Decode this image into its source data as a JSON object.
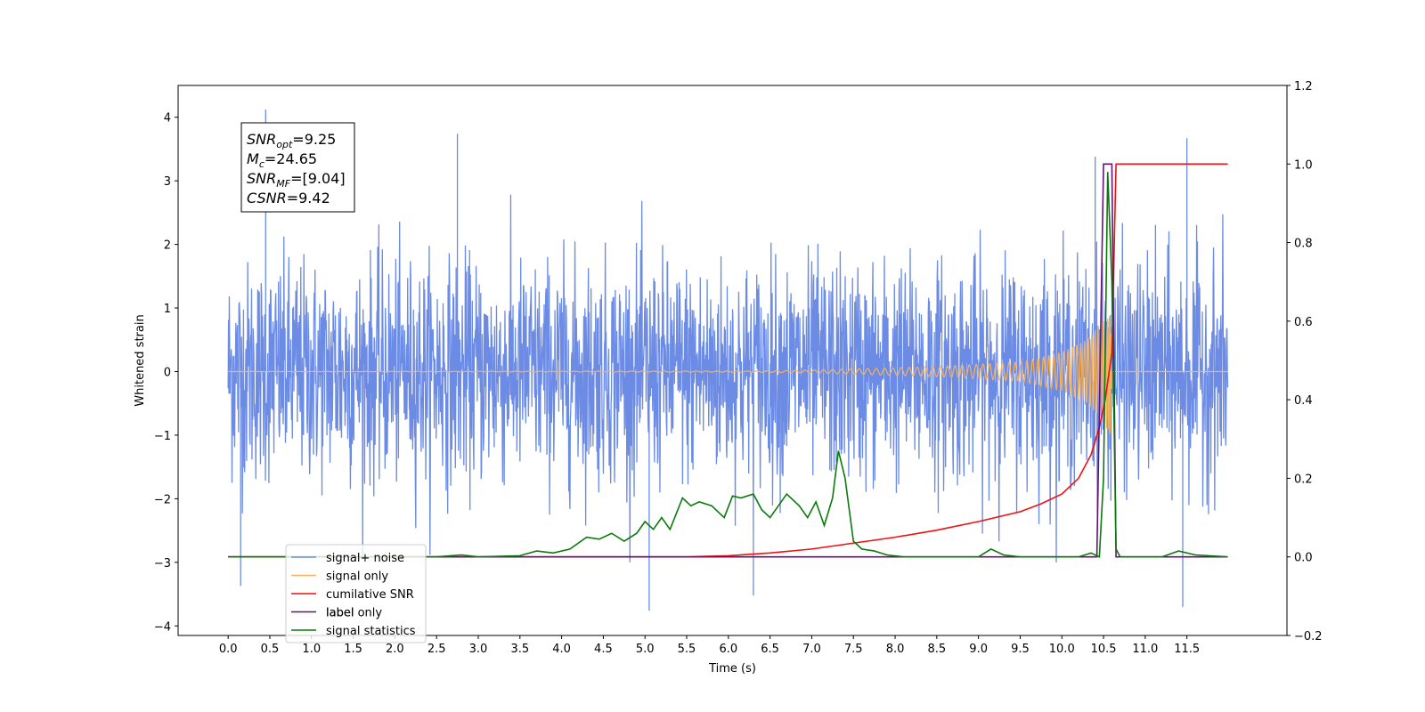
{
  "chart_data": {
    "type": "line",
    "xlabel": "Time (s)",
    "ylabel": "Whitened strain",
    "xlim": [
      -0.6,
      12.7
    ],
    "ylim": [
      -4.15,
      4.5
    ],
    "y2lim": [
      -0.2,
      1.2
    ],
    "x_ticks": [
      0.0,
      0.5,
      1.0,
      1.5,
      2.0,
      2.5,
      3.0,
      3.5,
      4.0,
      4.5,
      5.0,
      5.5,
      6.0,
      6.5,
      7.0,
      7.5,
      8.0,
      8.5,
      9.0,
      9.5,
      10.0,
      10.5,
      11.0,
      11.5
    ],
    "x_tick_labels": [
      "0.0",
      "0.5",
      "1.0",
      "1.5",
      "2.0",
      "2.5",
      "3.0",
      "3.5",
      "4.0",
      "4.5",
      "5.0",
      "5.5",
      "6.0",
      "6.5",
      "7.0",
      "7.5",
      "8.0",
      "8.5",
      "9.0",
      "9.5",
      "10.0",
      "10.5",
      "11.0",
      "11.5"
    ],
    "y_ticks": [
      -4,
      -3,
      -2,
      -1,
      0,
      1,
      2,
      3,
      4
    ],
    "y_tick_labels": [
      "−4",
      "−3",
      "−2",
      "−1",
      "0",
      "1",
      "2",
      "3",
      "4"
    ],
    "y2_ticks": [
      -0.2,
      0.0,
      0.2,
      0.4,
      0.6,
      0.8,
      1.0,
      1.2
    ],
    "y2_tick_labels": [
      "−0.2",
      "0.0",
      "0.2",
      "0.4",
      "0.6",
      "0.8",
      "1.0",
      "1.2"
    ],
    "grid": false,
    "legend_position": "lower-left",
    "series": [
      {
        "name": "signal+ noise",
        "axis": "left",
        "color": "#6b8be5",
        "description": "dense whitened noise, roughly within ±2.5 with peaks near ±4",
        "x_range": [
          0.0,
          11.99
        ],
        "amplitude_envelope_std": 0.85,
        "outlier_peaks": [
          [
            0.45,
            4.12
          ],
          [
            2.75,
            3.74
          ],
          [
            10.4,
            3.38
          ],
          [
            11.5,
            3.67
          ],
          [
            0.15,
            -3.37
          ],
          [
            5.05,
            -3.76
          ],
          [
            11.45,
            -3.7
          ],
          [
            6.3,
            -3.52
          ]
        ]
      },
      {
        "name": "signal only",
        "axis": "left",
        "color": "#f5b260",
        "description": "chirp growing in amplitude until merger near 10.6 s",
        "x_range": [
          0.0,
          11.99
        ],
        "amplitude_points": [
          [
            0.0,
            0.0
          ],
          [
            6.5,
            0.01
          ],
          [
            7.5,
            0.04
          ],
          [
            8.5,
            0.08
          ],
          [
            9.5,
            0.15
          ],
          [
            10.0,
            0.3
          ],
          [
            10.3,
            0.5
          ],
          [
            10.5,
            0.8
          ],
          [
            10.58,
            1.0
          ],
          [
            10.6,
            0.0
          ],
          [
            11.99,
            0.0
          ]
        ]
      },
      {
        "name": "cumilative SNR",
        "axis": "right",
        "color": "#ee1111",
        "x": [
          0.0,
          5.5,
          6.0,
          6.5,
          7.0,
          7.5,
          8.0,
          8.5,
          9.0,
          9.5,
          9.75,
          10.0,
          10.2,
          10.35,
          10.45,
          10.52,
          10.6,
          10.65,
          11.99
        ],
        "values": [
          0.0,
          0.0,
          0.003,
          0.01,
          0.02,
          0.035,
          0.05,
          0.068,
          0.09,
          0.115,
          0.135,
          0.16,
          0.2,
          0.26,
          0.33,
          0.4,
          0.52,
          1.0,
          1.0
        ]
      },
      {
        "name": "label",
        "axis": "right",
        "color": "#661177",
        "x": [
          0.0,
          10.42,
          10.5,
          10.6,
          10.65,
          11.99
        ],
        "values": [
          0.0,
          0.0,
          1.0,
          1.0,
          0.0,
          0.0
        ]
      },
      {
        "name": "label only",
        "axis": "right",
        "color": "#661177",
        "hidden": true
      },
      {
        "name": "signal statistics",
        "axis": "right",
        "color": "#0a7a0a",
        "x": [
          0.0,
          2.5,
          2.8,
          3.0,
          3.5,
          3.7,
          3.9,
          4.1,
          4.3,
          4.45,
          4.6,
          4.75,
          4.9,
          5.0,
          5.1,
          5.2,
          5.3,
          5.45,
          5.55,
          5.65,
          5.8,
          5.95,
          6.05,
          6.15,
          6.3,
          6.4,
          6.5,
          6.7,
          6.85,
          6.95,
          7.05,
          7.15,
          7.25,
          7.32,
          7.4,
          7.5,
          7.6,
          7.75,
          7.9,
          8.1,
          8.3,
          9.0,
          9.15,
          9.3,
          9.5,
          10.2,
          10.35,
          10.45,
          10.5,
          10.55,
          10.6,
          10.65,
          10.7,
          11.2,
          11.4,
          11.6,
          11.99
        ],
        "values": [
          0.0,
          0.0,
          0.005,
          0.0,
          0.003,
          0.015,
          0.01,
          0.02,
          0.05,
          0.045,
          0.06,
          0.04,
          0.06,
          0.09,
          0.07,
          0.1,
          0.07,
          0.15,
          0.13,
          0.14,
          0.13,
          0.1,
          0.155,
          0.15,
          0.16,
          0.12,
          0.1,
          0.16,
          0.13,
          0.1,
          0.14,
          0.08,
          0.15,
          0.27,
          0.2,
          0.04,
          0.02,
          0.015,
          0.005,
          0.0,
          0.0,
          0.0,
          0.02,
          0.005,
          0.0,
          0.0,
          0.01,
          0.0,
          0.2,
          0.98,
          0.7,
          0.02,
          0.0,
          0.0,
          0.015,
          0.005,
          0.0
        ]
      }
    ],
    "annotation": {
      "lines": [
        {
          "sym": "SNR",
          "sub": "opt",
          "eq": "=9.25"
        },
        {
          "sym": "M",
          "sub": "c",
          "eq": "=24.65"
        },
        {
          "sym": "SNR",
          "sub": "MF",
          "eq": "=[9.04]"
        },
        {
          "sym": "CSNR",
          "sub": "",
          "eq": "=9.42"
        }
      ]
    }
  }
}
